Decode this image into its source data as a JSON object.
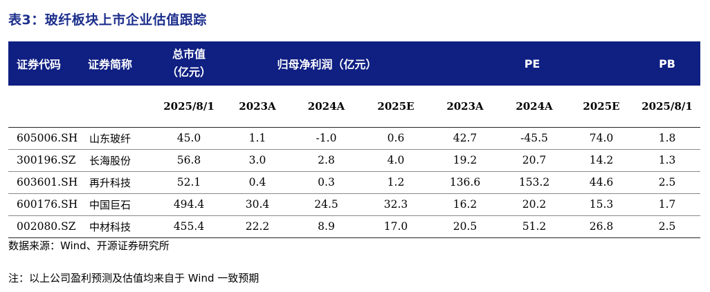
{
  "title": "表3：玻纤板块上市企业估值跟踪",
  "header": {
    "code": "证券代码",
    "name": "证券简称",
    "mktcap_line1": "总市值",
    "mktcap_line2": "（亿元）",
    "profit": "归母净利润（亿元）",
    "pe": "PE",
    "pb": "PB"
  },
  "subheader": [
    "2025/8/1",
    "2023A",
    "2024A",
    "2025E",
    "2023A",
    "2024A",
    "2025E",
    "2025/8/1"
  ],
  "rows": [
    {
      "code": "605006.SH",
      "name": "山东玻纤",
      "vals": [
        "45.0",
        "1.1",
        "-1.0",
        "0.6",
        "42.7",
        "-45.5",
        "74.0",
        "1.8"
      ]
    },
    {
      "code": "300196.SZ",
      "name": "长海股份",
      "vals": [
        "56.8",
        "3.0",
        "2.8",
        "4.0",
        "19.2",
        "20.7",
        "14.2",
        "1.3"
      ]
    },
    {
      "code": "603601.SH",
      "name": "再升科技",
      "vals": [
        "52.1",
        "0.4",
        "0.3",
        "1.2",
        "136.6",
        "153.2",
        "44.6",
        "2.5"
      ]
    },
    {
      "code": "600176.SH",
      "name": "中国巨石",
      "vals": [
        "494.4",
        "30.4",
        "24.5",
        "32.3",
        "16.2",
        "20.2",
        "15.3",
        "1.7"
      ]
    },
    {
      "code": "002080.SZ",
      "name": "中材科技",
      "vals": [
        "455.4",
        "22.2",
        "8.9",
        "17.0",
        "20.5",
        "51.2",
        "26.8",
        "2.5"
      ]
    }
  ],
  "source": "数据来源：Wind、开源证券研究所",
  "note": "注：以上公司盈利预测及估值均来自于 Wind 一致预期"
}
